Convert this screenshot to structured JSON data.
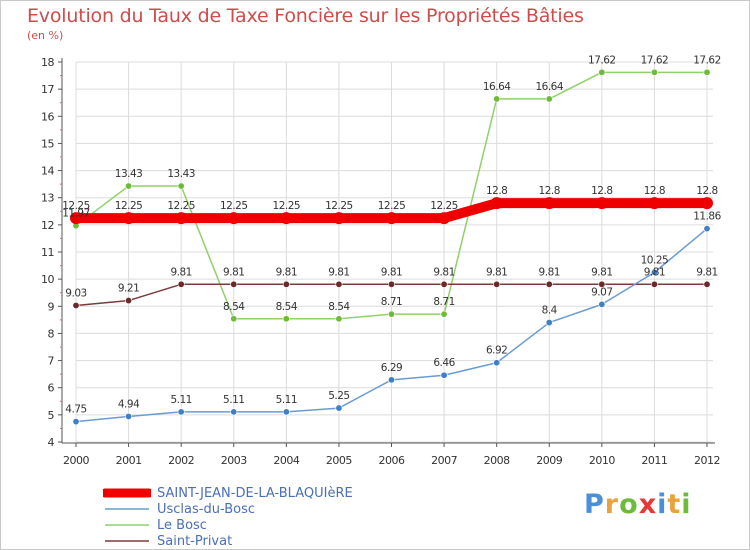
{
  "header": {
    "title": "Evolution du Taux de Taxe Foncière sur les Propriétés Bâties",
    "unit": "(en %)"
  },
  "logo": {
    "text": "Proxiti",
    "letter_colors": [
      "#4a90d9",
      "#e8a33b",
      "#6dbb3b",
      "#e53935",
      "#4a90d9",
      "#e8a33b",
      "#6dbb3b"
    ]
  },
  "chart_data": {
    "type": "line",
    "x": [
      "2000",
      "2001",
      "2002",
      "2003",
      "2004",
      "2005",
      "2006",
      "2007",
      "2008",
      "2009",
      "2010",
      "2011",
      "2012"
    ],
    "ylim": [
      4,
      18
    ],
    "yticks": [
      "4",
      "5",
      "6",
      "7",
      "8",
      "9",
      "10",
      "11",
      "12",
      "13",
      "14",
      "15",
      "16",
      "17",
      "18"
    ],
    "grid": true,
    "legend_position": "bottom-left",
    "series": [
      {
        "name": "SAINT-JEAN-DE-LA-BLAQUIèRE",
        "color": "#ee0000",
        "style": "thick",
        "values": [
          12.25,
          12.25,
          12.25,
          12.25,
          12.25,
          12.25,
          12.25,
          12.25,
          12.8,
          12.8,
          12.8,
          12.8,
          12.8
        ],
        "labels": [
          "12.25",
          "12.25",
          "12.25",
          "12.25",
          "12.25",
          "12.25",
          "12.25",
          "12.25",
          "12.8",
          "12.8",
          "12.8",
          "12.8",
          "12.8"
        ]
      },
      {
        "name": "Usclas-du-Bosc",
        "color": "#6a9bd1",
        "marker": "#3f7fc4",
        "values": [
          4.75,
          4.94,
          5.11,
          5.11,
          5.11,
          5.25,
          6.29,
          6.46,
          6.92,
          8.4,
          9.07,
          10.25,
          11.86
        ],
        "labels": [
          "4.75",
          "4.94",
          "5.11",
          "5.11",
          "5.11",
          "5.25",
          "6.29",
          "6.46",
          "6.92",
          "8.4",
          "9.07",
          "10.25",
          "11.86"
        ]
      },
      {
        "name": "Le Bosc",
        "color": "#8fd16a",
        "marker": "#6dbb3b",
        "values": [
          11.97,
          13.43,
          13.43,
          8.54,
          8.54,
          8.54,
          8.71,
          8.71,
          16.64,
          16.64,
          17.62,
          17.62,
          17.62
        ],
        "labels": [
          "11.97",
          "13.43",
          "13.43",
          "8.54",
          "8.54",
          "8.54",
          "8.71",
          "8.71",
          "16.64",
          "16.64",
          "17.62",
          "17.62",
          "17.62"
        ]
      },
      {
        "name": "Saint-Privat",
        "color": "#7a3b3b",
        "marker": "#6b2a2a",
        "values": [
          9.03,
          9.21,
          9.81,
          9.81,
          9.81,
          9.81,
          9.81,
          9.81,
          9.81,
          9.81,
          9.81,
          9.81,
          9.81
        ],
        "labels": [
          "9.03",
          "9.21",
          "9.81",
          "9.81",
          "9.81",
          "9.81",
          "9.81",
          "9.81",
          "9.81",
          "9.81",
          "9.81",
          "9.81",
          "9.81"
        ]
      }
    ]
  }
}
